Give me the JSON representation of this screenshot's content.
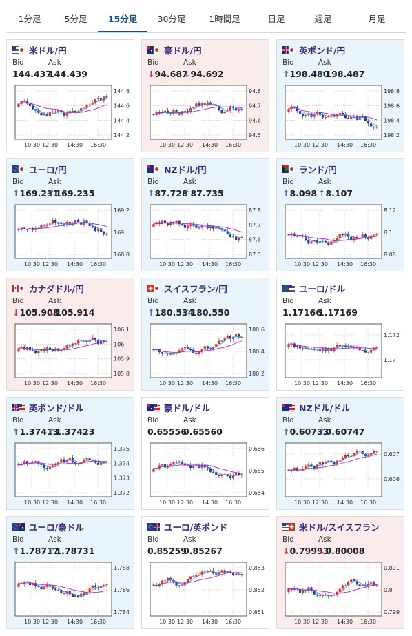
{
  "tabs": [
    {
      "label": "1分足",
      "active": false
    },
    {
      "label": "5分足",
      "active": false
    },
    {
      "label": "15分足",
      "active": true
    },
    {
      "label": "30分足",
      "active": false
    },
    {
      "label": "1時間足",
      "active": false
    },
    {
      "label": "日足",
      "active": false
    },
    {
      "label": "週足",
      "active": false
    },
    {
      "label": "月足",
      "active": false
    }
  ],
  "bid_label": "Bid",
  "ask_label": "Ask",
  "cards": [
    {
      "name": "米ドル/円",
      "flag": "us-jp",
      "dir": "none",
      "bid": "144.437",
      "ask": "144.439",
      "yticks": [
        "144.8",
        "144.6",
        "144.4",
        "144.2"
      ],
      "xticks": [
        "10:30",
        "12:30",
        "14:30",
        "16:30"
      ]
    },
    {
      "name": "豪ドル/円",
      "flag": "au-jp",
      "dir": "down",
      "bid": "94.687",
      "ask": "94.692",
      "yticks": [
        "94.8",
        "94.7",
        "94.6",
        "94.5"
      ],
      "xticks": [
        "10:30",
        "12:30",
        "14:30",
        "16:30"
      ]
    },
    {
      "name": "英ポンド/円",
      "flag": "uk-jp",
      "dir": "up",
      "bid": "198.480",
      "ask": "198.487",
      "yticks": [
        "198.8",
        "198.6",
        "198.4",
        "198.2"
      ],
      "xticks": [
        "10:30",
        "12:30",
        "14:30",
        "16:30"
      ]
    },
    {
      "name": "ユーロ/円",
      "flag": "eu-jp",
      "dir": "up",
      "bid": "169.231",
      "ask": "169.235",
      "yticks": [
        "169.2",
        "169",
        "168.8"
      ],
      "xticks": [
        "10:30",
        "12:30",
        "14:30",
        "16:30"
      ]
    },
    {
      "name": "NZドル/円",
      "flag": "nz-jp",
      "dir": "up",
      "bid": "87.728",
      "ask": "87.735",
      "yticks": [
        "87.8",
        "87.7",
        "87.6",
        "87.5"
      ],
      "xticks": [
        "10:30",
        "12:30",
        "14:30",
        "16:30"
      ]
    },
    {
      "name": "ランド/円",
      "flag": "za-jp",
      "dir": "up",
      "bid": "8.098",
      "ask": "8.107",
      "yticks": [
        "8.12",
        "8.1",
        "8.08"
      ],
      "xticks": [
        "10:30",
        "12:30",
        "14:30",
        "16:30"
      ]
    },
    {
      "name": "カナダドル/円",
      "flag": "ca-jp",
      "dir": "down",
      "bid": "105.908",
      "ask": "105.914",
      "yticks": [
        "106.1",
        "106",
        "105.9",
        "105.8"
      ],
      "xticks": [
        "10:30",
        "12:30",
        "14:30",
        "16:30"
      ]
    },
    {
      "name": "スイスフラン/円",
      "flag": "ch-jp",
      "dir": "up",
      "bid": "180.534",
      "ask": "180.550",
      "yticks": [
        "180.6",
        "180.4",
        "180.2"
      ],
      "xticks": [
        "10:30",
        "12:30",
        "14:30",
        "16:30"
      ]
    },
    {
      "name": "ユーロ/ドル",
      "flag": "eu-us",
      "dir": "none",
      "bid": "1.17166",
      "ask": "1.17169",
      "yticks": [
        "1.172",
        "1.17"
      ],
      "xticks": [
        "10:30",
        "12:30",
        "14:30",
        "16:30"
      ]
    },
    {
      "name": "英ポンド/ドル",
      "flag": "uk-us",
      "dir": "up",
      "bid": "1.37413",
      "ask": "1.37423",
      "yticks": [
        "1.375",
        "1.374",
        "1.373",
        "1.372"
      ],
      "xticks": [
        "10:30",
        "12:30",
        "14:30",
        "16:30"
      ]
    },
    {
      "name": "豪ドル/ドル",
      "flag": "au-us",
      "dir": "none",
      "bid": "0.65556",
      "ask": "0.65560",
      "yticks": [
        "0.656",
        "0.655",
        "0.654"
      ],
      "xticks": [
        "10:30",
        "12:30",
        "14:30",
        "16:30"
      ]
    },
    {
      "name": "NZドル/ドル",
      "flag": "nz-us",
      "dir": "up",
      "bid": "0.60733",
      "ask": "0.60747",
      "yticks": [
        "0.607",
        "0.606"
      ],
      "xticks": [
        "10:30",
        "12:30",
        "14:30",
        "16:30"
      ]
    },
    {
      "name": "ユーロ/豪ドル",
      "flag": "eu-au",
      "dir": "up",
      "bid": "1.78717",
      "ask": "1.78731",
      "yticks": [
        "1.788",
        "1.786",
        "1.784"
      ],
      "xticks": [
        "10:30",
        "12:30",
        "14:30",
        "16:30"
      ]
    },
    {
      "name": "ユーロ/英ポンド",
      "flag": "eu-uk",
      "dir": "none",
      "bid": "0.85259",
      "ask": "0.85267",
      "yticks": [
        "0.853",
        "0.852",
        "0.851"
      ],
      "xticks": [
        "10:30",
        "12:30",
        "14:30",
        "16:30"
      ]
    },
    {
      "name": "米ドル/スイスフラン",
      "flag": "us-ch",
      "dir": "down",
      "bid": "0.79993",
      "ask": "0.80008",
      "yticks": [
        "0.801",
        "0.8",
        "0.799"
      ],
      "xticks": [
        "10:30",
        "12:30",
        "14:30",
        "16:30"
      ]
    }
  ],
  "colors": {
    "up_candle": "#d9342b",
    "down_candle": "#1f3f9a",
    "ma_short": "#3aa0e8",
    "ma_long": "#c81ec8",
    "arrow_up": "#2a77c9",
    "arrow_down": "#d9342b"
  }
}
